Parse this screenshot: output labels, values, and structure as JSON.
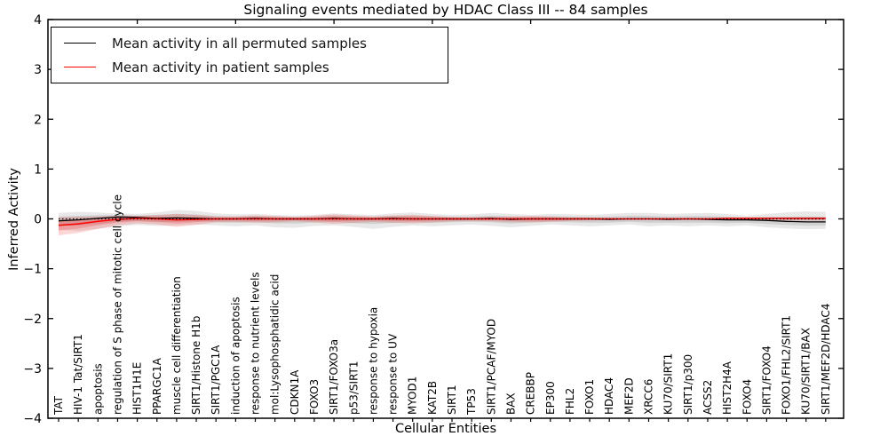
{
  "chart_data": {
    "type": "line",
    "title": "Signaling events mediated by HDAC Class III -- 84 samples",
    "xlabel": "Cellular Entities",
    "ylabel": "Inferred Activity",
    "ylim": [
      -4,
      4
    ],
    "grid": false,
    "legend_position": "upper left",
    "categories": [
      "TAT",
      "HIV-1 Tat/SIRT1",
      "apoptosis",
      "regulation of S phase of mitotic cell cycle",
      "HIST1H1E",
      "PPARGC1A",
      "muscle cell differentiation",
      "SIRT1/Histone H1b",
      "SIRT1/PGC1A",
      "induction of apoptosis",
      "response to nutrient levels",
      "mol:Lysophosphatidic acid",
      "CDKN1A",
      "FOXO3",
      "SIRT1/FOXO3a",
      "p53/SIRT1",
      "response to hypoxia",
      "response to UV",
      "MYOD1",
      "KAT2B",
      "SIRT1",
      "TP53",
      "SIRT1/PCAF/MYOD",
      "BAX",
      "CREBBP",
      "EP300",
      "FHL2",
      "FOXO1",
      "HDAC4",
      "MEF2D",
      "XRCC6",
      "KU70/SIRT1",
      "SIRT1/p300",
      "ACSS2",
      "HIST2H4A",
      "FOXO4",
      "SIRT1/FOXO4",
      "FOXO1/FHL2/SIRT1",
      "KU70/SIRT1/BAX",
      "SIRT1/MEF2D/HDAC4"
    ],
    "yticks": [
      {
        "v": -4,
        "label": "−4"
      },
      {
        "v": -3,
        "label": "−3"
      },
      {
        "v": -2,
        "label": "−2"
      },
      {
        "v": -1,
        "label": "−1"
      },
      {
        "v": 0,
        "label": "0"
      },
      {
        "v": 1,
        "label": "1"
      },
      {
        "v": 2,
        "label": "2"
      },
      {
        "v": 3,
        "label": "3"
      },
      {
        "v": 4,
        "label": "4"
      }
    ],
    "top_tick_indices": [
      4,
      9,
      14,
      19,
      24,
      29,
      34,
      39
    ],
    "zero_line": {
      "y": 0,
      "style": "dotted",
      "color": "#000000"
    },
    "series": [
      {
        "name": "Mean activity in all permuted samples",
        "color": "#000000",
        "style": "solid",
        "values": [
          -0.04,
          -0.02,
          0.01,
          0.04,
          0.03,
          0.01,
          0.02,
          0.01,
          0.0,
          0.0,
          0.01,
          0.0,
          0.0,
          0.0,
          0.01,
          0.0,
          0.0,
          0.01,
          0.0,
          0.0,
          0.0,
          0.0,
          0.01,
          -0.01,
          0.0,
          0.0,
          0.0,
          0.0,
          -0.01,
          0.0,
          0.0,
          -0.01,
          0.0,
          -0.01,
          -0.02,
          -0.02,
          -0.03,
          -0.05,
          -0.06,
          -0.06
        ]
      },
      {
        "name": "Mean activity in patient samples",
        "color": "#ff0000",
        "style": "solid",
        "values": [
          -0.13,
          -0.1,
          -0.05,
          -0.01,
          0.01,
          0.0,
          -0.02,
          -0.01,
          0.0,
          0.0,
          0.0,
          0.0,
          0.0,
          0.0,
          0.0,
          0.0,
          0.0,
          0.0,
          0.0,
          0.0,
          0.0,
          0.0,
          0.0,
          0.0,
          0.0,
          0.0,
          0.0,
          0.0,
          0.0,
          0.0,
          0.0,
          0.0,
          0.0,
          0.0,
          0.01,
          0.01,
          0.01,
          0.01,
          0.01,
          0.01
        ]
      }
    ],
    "bands": [
      {
        "name": "permuted-confidence-band",
        "color": "#000000",
        "opacity": 0.09,
        "upper": [
          0.12,
          0.14,
          0.13,
          0.11,
          0.1,
          0.13,
          0.18,
          0.16,
          0.11,
          0.09,
          0.1,
          0.08,
          0.07,
          0.08,
          0.11,
          0.09,
          0.08,
          0.11,
          0.13,
          0.1,
          0.08,
          0.09,
          0.12,
          0.1,
          0.08,
          0.1,
          0.09,
          0.08,
          0.1,
          0.12,
          0.12,
          0.1,
          0.11,
          0.12,
          0.1,
          0.06,
          0.1,
          0.13,
          0.15,
          0.14
        ],
        "lower": [
          -0.22,
          -0.24,
          -0.2,
          -0.15,
          -0.12,
          -0.14,
          -0.13,
          -0.11,
          -0.13,
          -0.15,
          -0.13,
          -0.17,
          -0.18,
          -0.14,
          -0.13,
          -0.16,
          -0.2,
          -0.16,
          -0.13,
          -0.15,
          -0.13,
          -0.11,
          -0.14,
          -0.17,
          -0.14,
          -0.11,
          -0.13,
          -0.15,
          -0.13,
          -0.11,
          -0.15,
          -0.13,
          -0.15,
          -0.13,
          -0.15,
          -0.13,
          -0.17,
          -0.19,
          -0.21,
          -0.2
        ]
      },
      {
        "name": "patient-confidence-band",
        "color": "#ff0000",
        "opacity": 0.16,
        "upper": [
          0.03,
          0.04,
          0.05,
          0.06,
          0.06,
          0.08,
          0.1,
          0.08,
          0.05,
          0.05,
          0.07,
          0.06,
          0.04,
          0.06,
          0.09,
          0.07,
          0.05,
          0.07,
          0.08,
          0.06,
          0.04,
          0.03,
          0.04,
          0.05,
          0.06,
          0.05,
          0.03,
          0.03,
          0.02,
          0.02,
          0.02,
          0.02,
          0.02,
          0.02,
          0.02,
          0.03,
          0.03,
          0.03,
          0.03,
          0.03
        ],
        "lower": [
          -0.33,
          -0.28,
          -0.2,
          -0.13,
          -0.09,
          -0.11,
          -0.16,
          -0.12,
          -0.07,
          -0.06,
          -0.08,
          -0.07,
          -0.05,
          -0.07,
          -0.1,
          -0.08,
          -0.06,
          -0.08,
          -0.09,
          -0.07,
          -0.05,
          -0.04,
          -0.05,
          -0.06,
          -0.07,
          -0.06,
          -0.04,
          -0.03,
          -0.02,
          -0.02,
          -0.02,
          -0.02,
          -0.02,
          -0.02,
          -0.02,
          -0.03,
          -0.03,
          -0.03,
          -0.03,
          -0.03
        ]
      }
    ]
  },
  "legend": {
    "entries": [
      {
        "label": "Mean activity in all permuted samples",
        "color": "#000000"
      },
      {
        "label": "Mean activity in patient samples",
        "color": "#ff0000"
      }
    ]
  }
}
